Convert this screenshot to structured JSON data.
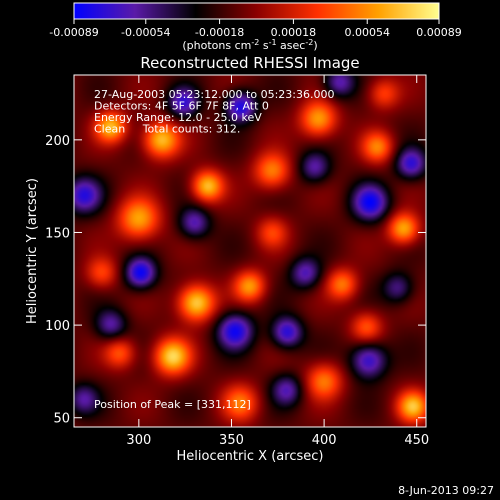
{
  "chart_data": {
    "type": "heatmap",
    "title": "Reconstructed RHESSI Image",
    "xlabel": "Heliocentric X (arcsec)",
    "ylabel": "Heliocentric Y (arcsec)",
    "xlim": [
      265,
      455
    ],
    "ylim": [
      45,
      235
    ],
    "x_ticks": [
      300,
      350,
      400,
      450
    ],
    "y_ticks": [
      50,
      100,
      150,
      200
    ],
    "colorbar": {
      "range": [
        -0.00089,
        0.00089
      ],
      "tick_values": [
        -0.00089,
        -0.00054,
        -0.00018,
        0.00018,
        0.00054,
        0.00089
      ],
      "tick_labels": [
        "-0.00089",
        "-0.00054",
        "-0.00018",
        "0.00018",
        "0.00054",
        "0.00089"
      ],
      "unit_prefix": "(photons cm",
      "unit_exp1": "-2",
      "unit_mid": " s",
      "unit_exp2": "-1",
      "unit_mid2": " asec",
      "unit_exp3": "-2",
      "unit_suffix": ")",
      "colormap": [
        "#0000ff",
        "#5a1aa8",
        "#000000",
        "#8b0000",
        "#ff3000",
        "#ffa000",
        "#ffff90"
      ]
    },
    "annotations": [
      "27-Aug-2003 05:23:12.000 to 05:23:36.000",
      "Detectors: 4F 5F 6F 7F 8F, Att 0",
      "Energy Range: 12.0 - 25.0 keV",
      "Clean     Total counts: 312."
    ],
    "peak_label": "Position of Peak = [331,112]",
    "peak": {
      "x": 331,
      "y": 112,
      "value": 0.00089
    },
    "sources": [
      {
        "x": 331,
        "y": 112,
        "amp": 1.0,
        "s": 7
      },
      {
        "x": 318,
        "y": 83,
        "amp": 0.95,
        "s": 7
      },
      {
        "x": 312,
        "y": 200,
        "amp": 0.9,
        "s": 7
      },
      {
        "x": 337,
        "y": 175,
        "amp": 0.9,
        "s": 6
      },
      {
        "x": 285,
        "y": 207,
        "amp": 0.85,
        "s": 6
      },
      {
        "x": 300,
        "y": 157,
        "amp": 0.8,
        "s": 8
      },
      {
        "x": 372,
        "y": 183,
        "amp": 0.7,
        "s": 7
      },
      {
        "x": 360,
        "y": 121,
        "amp": 0.75,
        "s": 6
      },
      {
        "x": 397,
        "y": 211,
        "amp": 0.8,
        "s": 7
      },
      {
        "x": 429,
        "y": 196,
        "amp": 0.65,
        "s": 6
      },
      {
        "x": 443,
        "y": 152,
        "amp": 0.85,
        "s": 6
      },
      {
        "x": 410,
        "y": 122,
        "amp": 0.65,
        "s": 6
      },
      {
        "x": 423,
        "y": 99,
        "amp": 0.55,
        "s": 6
      },
      {
        "x": 400,
        "y": 70,
        "amp": 0.65,
        "s": 7
      },
      {
        "x": 448,
        "y": 56,
        "amp": 0.85,
        "s": 6
      },
      {
        "x": 355,
        "y": 58,
        "amp": 0.6,
        "s": 7
      },
      {
        "x": 290,
        "y": 85,
        "amp": 0.55,
        "s": 6
      },
      {
        "x": 280,
        "y": 128,
        "amp": 0.5,
        "s": 6
      },
      {
        "x": 372,
        "y": 150,
        "amp": 0.45,
        "s": 6
      },
      {
        "x": 432,
        "y": 225,
        "amp": 0.5,
        "s": 6
      },
      {
        "x": 270,
        "y": 170,
        "amp": -0.7,
        "s": 7
      },
      {
        "x": 301,
        "y": 128,
        "amp": -0.85,
        "s": 6
      },
      {
        "x": 352,
        "y": 97,
        "amp": -0.8,
        "s": 7
      },
      {
        "x": 380,
        "y": 96,
        "amp": -0.75,
        "s": 6
      },
      {
        "x": 425,
        "y": 166,
        "amp": -0.8,
        "s": 7
      },
      {
        "x": 447,
        "y": 187,
        "amp": -0.7,
        "s": 6
      },
      {
        "x": 355,
        "y": 218,
        "amp": -0.8,
        "s": 6
      },
      {
        "x": 324,
        "y": 220,
        "amp": -0.65,
        "s": 6
      },
      {
        "x": 390,
        "y": 128,
        "amp": -0.6,
        "s": 6
      },
      {
        "x": 424,
        "y": 81,
        "amp": -0.75,
        "s": 7
      },
      {
        "x": 380,
        "y": 65,
        "amp": -0.55,
        "s": 6
      },
      {
        "x": 330,
        "y": 155,
        "amp": -0.6,
        "s": 6
      },
      {
        "x": 285,
        "y": 100,
        "amp": -0.55,
        "s": 6
      },
      {
        "x": 270,
        "y": 60,
        "amp": -0.5,
        "s": 6
      },
      {
        "x": 395,
        "y": 185,
        "amp": -0.55,
        "s": 6
      },
      {
        "x": 408,
        "y": 231,
        "amp": -0.6,
        "s": 6
      },
      {
        "x": 440,
        "y": 120,
        "amp": -0.5,
        "s": 6
      }
    ]
  },
  "footer": {
    "timestamp": "8-Jun-2013 09:27"
  }
}
